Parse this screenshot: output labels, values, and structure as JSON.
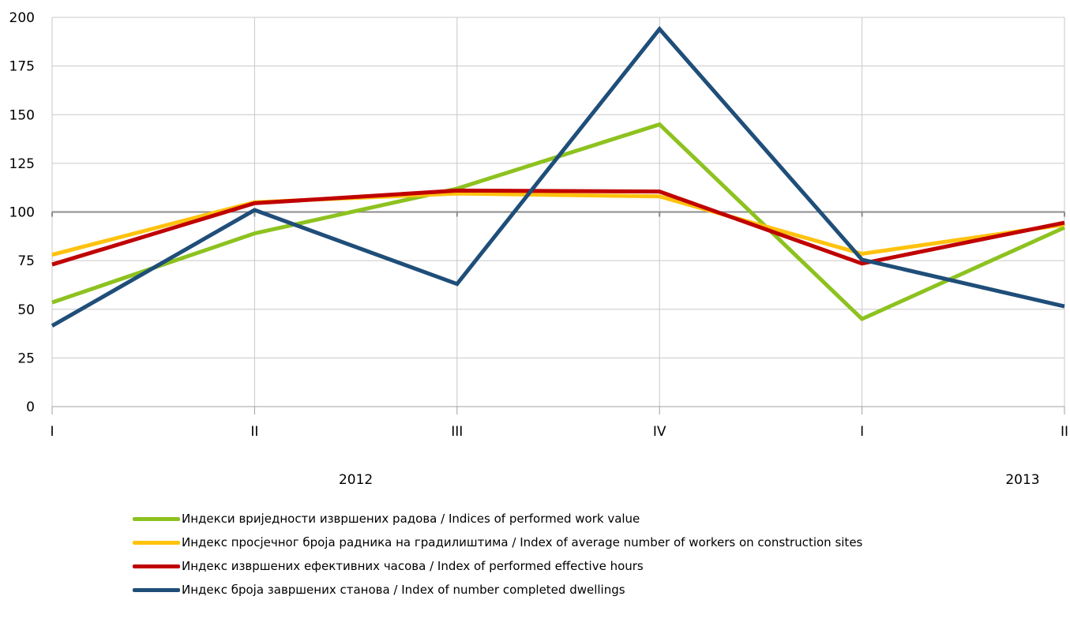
{
  "chart_data": {
    "type": "line",
    "categories": [
      "I",
      "II",
      "III",
      "IV",
      "I",
      "II"
    ],
    "groups": [
      {
        "label": "2012",
        "from": 0,
        "to": 3
      },
      {
        "label": "2013",
        "from": 4,
        "to": 5
      }
    ],
    "ylim": [
      0,
      200
    ],
    "yticks": [
      0,
      25,
      50,
      75,
      100,
      125,
      150,
      175,
      200
    ],
    "reference_line": 100,
    "grid": true,
    "legend_position": "bottom",
    "series": [
      {
        "name": "Индекси вриједности извршених радова / Indices of performed work value",
        "color": "#8DC21F",
        "values": [
          53.5,
          89,
          112,
          145,
          45,
          92
        ]
      },
      {
        "name": "Индекс просјечног броја радника на градилиштима / Index of average number of workers on construction sites",
        "color": "#FFC20E",
        "values": [
          78,
          105,
          109.5,
          108,
          78.5,
          93.5
        ]
      },
      {
        "name": "Индекс извршених ефективних часова / Index of performed effective hours",
        "color": "#C00000",
        "values": [
          73,
          104.5,
          111,
          110.5,
          73.5,
          94.5
        ]
      },
      {
        "name": "Индекс броја завршених станова / Index of number completed dwellings",
        "color": "#1F4E79",
        "values": [
          41.5,
          101,
          63,
          194,
          75.5,
          51.5
        ]
      }
    ]
  }
}
